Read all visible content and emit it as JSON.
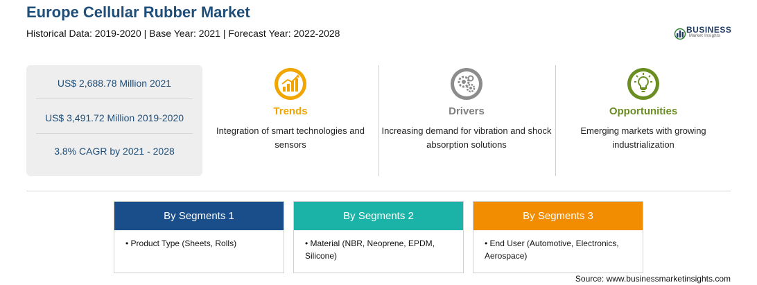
{
  "header": {
    "title": "Europe Cellular Rubber Market",
    "subtitle": "Historical Data: 2019-2020 | Base Year: 2021 | Forecast Year: 2022-2028"
  },
  "logo": {
    "word": "BUSINESS",
    "sub": "Market Insights",
    "icon": "bar-chart-globe-icon"
  },
  "stats": [
    "US$ 2,688.78 Million 2021",
    "US$ 3,491.72 Million 2019-2020",
    "3.8% CAGR by 2021 - 2028"
  ],
  "features": [
    {
      "title": "Trends",
      "desc": "Integration of smart technologies and sensors",
      "color": "#f0a500",
      "icon": "trend-chart-icon"
    },
    {
      "title": "Drivers",
      "desc": "Increasing demand for vibration and shock absorption solutions",
      "color": "#7f7f7f",
      "icon": "gears-icon"
    },
    {
      "title": "Opportunities",
      "desc": "Emerging markets with growing industrialization",
      "color": "#6b8e23",
      "icon": "lightbulb-icon"
    }
  ],
  "segments": [
    {
      "title": "By Segments 1",
      "color": "#1a4e8a",
      "item": "Product Type (Sheets, Rolls)"
    },
    {
      "title": "By Segments 2",
      "color": "#1bb3a8",
      "item": "Material (NBR, Neoprene, EPDM, Silicone)"
    },
    {
      "title": "By Segments 3",
      "color": "#f28c00",
      "item": "End User (Automotive, Electronics, Aerospace)"
    }
  ],
  "source": "Source: www.businessmarketinsights.com"
}
